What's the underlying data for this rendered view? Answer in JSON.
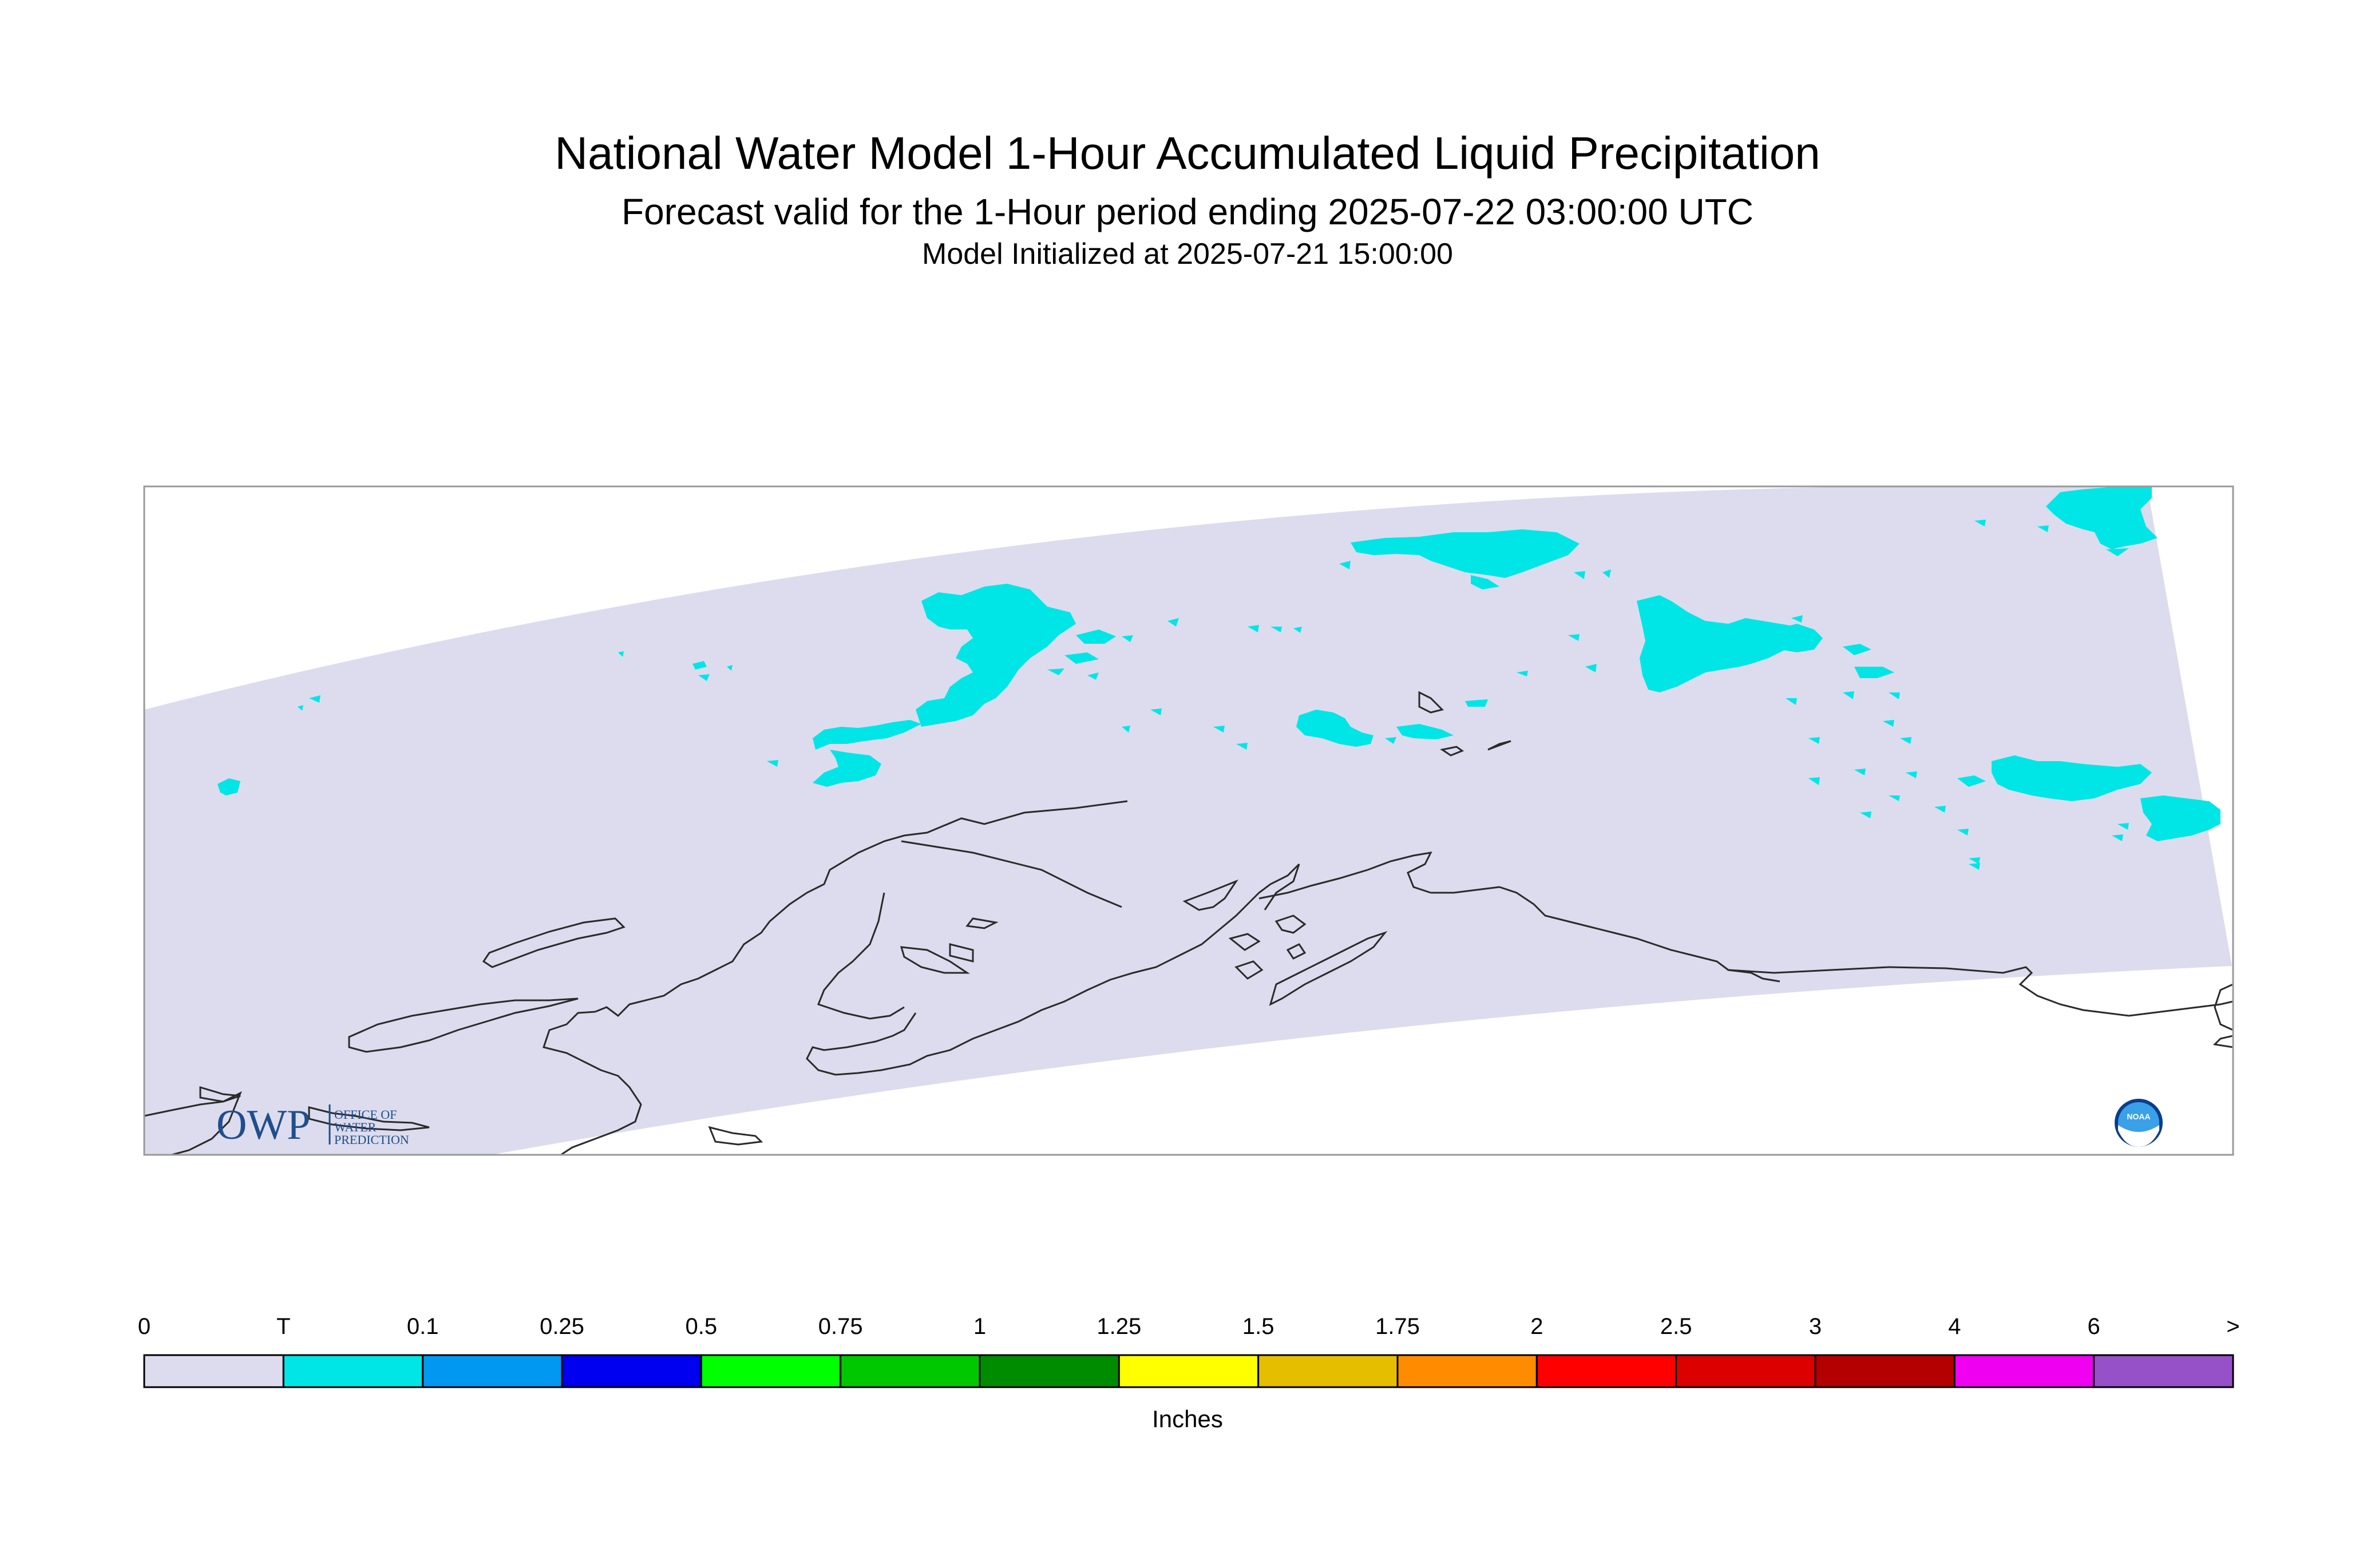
{
  "title": "National Water Model 1-Hour Accumulated Liquid Precipitation",
  "subtitle": "Forecast valid for the 1-Hour period ending 2025-07-22 03:00:00 UTC",
  "init_line": "Model Initialized at 2025-07-21 15:00:00",
  "logo_owp": {
    "mark": "OWP",
    "text_lines": [
      "OFFICE OF",
      "WATER",
      "PREDICTION"
    ]
  },
  "logo_noaa": {
    "text": "NOAA"
  },
  "colors": {
    "domain_fill": "#dcdcee",
    "precip_trace": "#00e6e6",
    "coastline": "#2a2a2a",
    "frame": "#999999"
  },
  "legend": {
    "units": "Inches",
    "labels": [
      "0",
      "T",
      "0.1",
      "0.25",
      "0.5",
      "0.75",
      "1",
      "1.25",
      "1.5",
      "1.75",
      "2",
      "2.5",
      "3",
      "4",
      "6",
      ">"
    ],
    "colors": [
      "#dcdcee",
      "#00e6e6",
      "#0098f0",
      "#0000f0",
      "#00ff00",
      "#00c800",
      "#008c00",
      "#ffff00",
      "#e6be00",
      "#ff8c00",
      "#ff0000",
      "#dc0000",
      "#b40000",
      "#f000f0",
      "#9650c8"
    ]
  }
}
